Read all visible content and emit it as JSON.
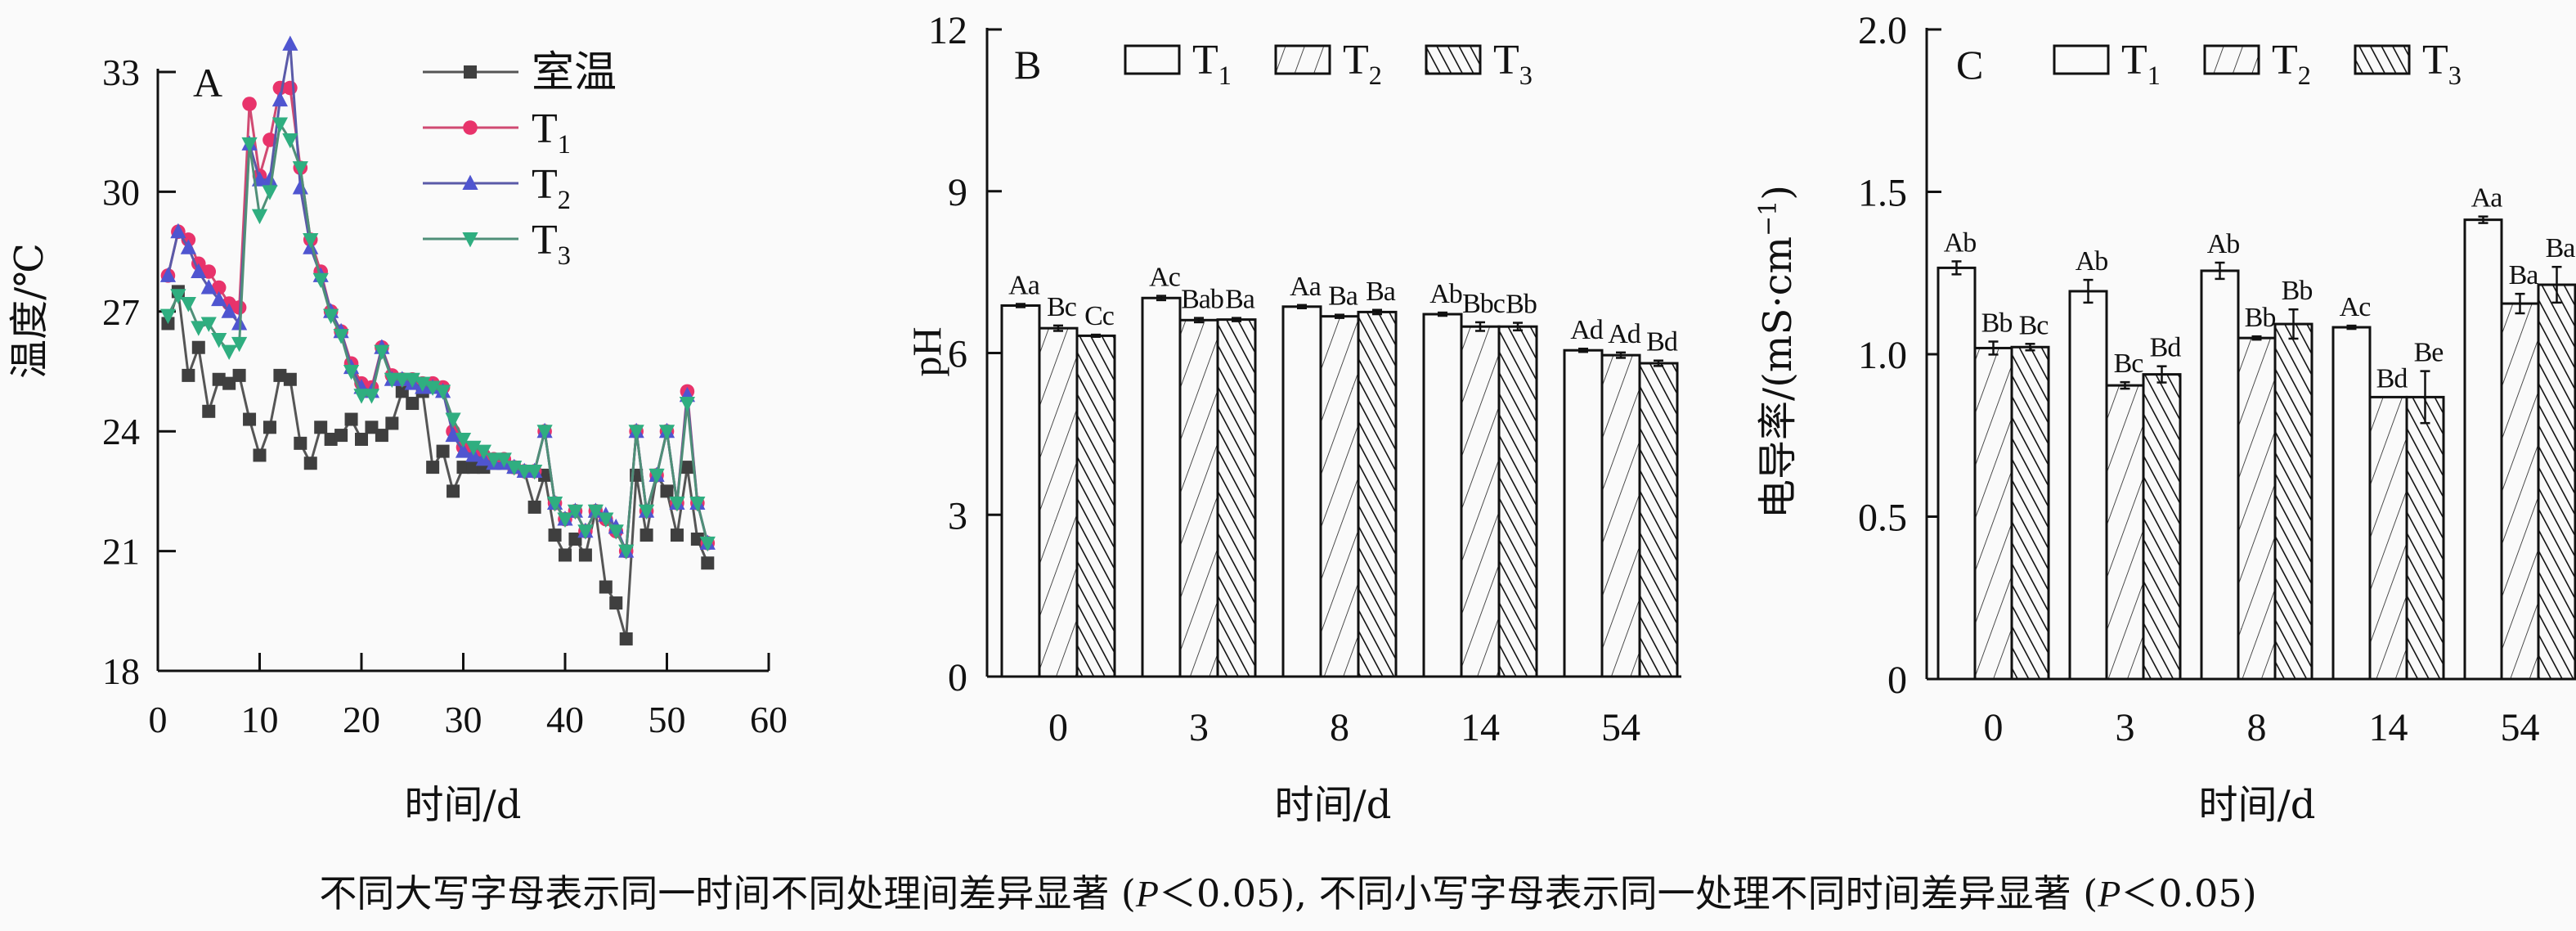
{
  "caption": {
    "parts": [
      "不同大写字母表示同一时间不同处理间差异显著 (",
      "P",
      "＜0.05), 不同小写字母表示同一处理不同时间差异显著 (",
      "P",
      "＜0.05)"
    ]
  },
  "chart_data": [
    {
      "type": "line",
      "panel_label": "A",
      "xlabel": "时间/d",
      "ylabel": "温度/℃",
      "xlim": [
        0,
        60
      ],
      "ylim": [
        18,
        33
      ],
      "xticks": [
        "0",
        "10",
        "20",
        "30",
        "40",
        "50",
        "60"
      ],
      "yticks": [
        "18",
        "21",
        "24",
        "27",
        "30",
        "33"
      ],
      "legend_position": "top-right",
      "grid": false,
      "x": [
        1,
        2,
        3,
        4,
        5,
        6,
        7,
        8,
        9,
        10,
        11,
        12,
        13,
        14,
        15,
        16,
        17,
        18,
        19,
        20,
        21,
        22,
        23,
        24,
        25,
        26,
        27,
        28,
        29,
        30,
        31,
        32,
        33,
        34,
        35,
        36,
        37,
        38,
        39,
        40,
        41,
        42,
        43,
        44,
        45,
        46,
        47,
        48,
        49,
        50,
        51,
        52,
        53,
        54
      ],
      "series": [
        {
          "name": "室温",
          "marker": "square",
          "color": "#3f3f3f",
          "line_color": "#555555",
          "values": [
            26.7,
            27.5,
            25.4,
            26.1,
            24.5,
            25.3,
            25.2,
            25.4,
            24.3,
            23.4,
            24.1,
            25.4,
            25.3,
            23.7,
            23.2,
            24.1,
            23.8,
            23.9,
            24.3,
            23.8,
            24.1,
            23.9,
            24.2,
            25.0,
            24.7,
            25.0,
            23.1,
            23.5,
            22.5,
            23.1,
            23.1,
            23.1,
            23.2,
            23.2,
            23.1,
            23.0,
            22.1,
            22.9,
            21.4,
            20.9,
            21.3,
            20.9,
            22.0,
            20.1,
            19.7,
            18.8,
            22.9,
            21.4,
            22.9,
            22.5,
            21.4,
            23.1,
            21.3,
            20.7
          ]
        },
        {
          "name": "T1",
          "marker": "circle",
          "color": "#e8336b",
          "line_color": "#d04a72",
          "values": [
            27.9,
            29.0,
            28.8,
            28.2,
            28.0,
            27.6,
            27.2,
            27.1,
            32.2,
            30.4,
            31.3,
            32.6,
            32.6,
            30.6,
            28.8,
            28.0,
            27.0,
            26.5,
            25.7,
            25.2,
            25.1,
            26.1,
            25.4,
            25.3,
            25.3,
            25.2,
            25.2,
            25.1,
            24.0,
            23.6,
            23.5,
            23.4,
            23.3,
            23.3,
            23.1,
            23.0,
            23.0,
            24.0,
            22.2,
            21.8,
            22.0,
            21.5,
            22.0,
            21.8,
            21.5,
            21.0,
            24.0,
            22.0,
            22.9,
            24.0,
            22.2,
            25.0,
            22.2,
            21.2
          ]
        },
        {
          "name": "T2",
          "marker": "triangle-up",
          "color": "#4f55d0",
          "line_color": "#5a5aa8",
          "values": [
            27.9,
            29.0,
            28.6,
            28.0,
            27.6,
            27.3,
            27.0,
            26.7,
            31.2,
            30.3,
            30.3,
            32.3,
            33.7,
            30.1,
            28.6,
            27.9,
            27.0,
            26.5,
            25.6,
            25.1,
            25.0,
            26.1,
            25.3,
            25.3,
            25.2,
            25.1,
            25.1,
            25.0,
            23.9,
            23.5,
            23.4,
            23.3,
            23.2,
            23.2,
            23.1,
            23.0,
            23.0,
            24.0,
            22.2,
            21.8,
            22.0,
            21.5,
            22.0,
            21.9,
            21.6,
            21.0,
            24.0,
            22.0,
            22.9,
            24.0,
            22.2,
            24.9,
            22.2,
            21.2
          ]
        },
        {
          "name": "T3",
          "marker": "triangle-down",
          "color": "#2fae80",
          "line_color": "#4f8f78",
          "values": [
            26.9,
            27.4,
            27.2,
            26.6,
            26.7,
            26.3,
            26.0,
            26.2,
            31.2,
            29.4,
            30.0,
            31.7,
            31.3,
            30.6,
            28.8,
            27.8,
            26.9,
            26.4,
            25.5,
            24.9,
            24.9,
            26.0,
            25.3,
            25.3,
            25.3,
            25.2,
            25.1,
            25.0,
            24.3,
            23.8,
            23.6,
            23.5,
            23.3,
            23.3,
            23.1,
            23.0,
            23.0,
            24.0,
            22.2,
            21.8,
            22.0,
            21.5,
            22.0,
            21.8,
            21.5,
            21.0,
            24.0,
            22.0,
            22.9,
            24.0,
            22.2,
            24.7,
            22.2,
            21.2
          ]
        }
      ]
    },
    {
      "type": "bar",
      "panel_label": "B",
      "xlabel": "时间/d",
      "ylabel": "pH",
      "ylim": [
        0,
        12
      ],
      "yticks": [
        "0",
        "3",
        "6",
        "9",
        "12"
      ],
      "categories": [
        "0",
        "3",
        "8",
        "14",
        "54"
      ],
      "legend_position": "top",
      "grid": false,
      "series": [
        {
          "name": "T1",
          "fill": "open",
          "values": [
            6.88,
            7.02,
            6.86,
            6.72,
            6.05
          ],
          "errors": [
            0.03,
            0.04,
            0.03,
            0.03,
            0.03
          ],
          "letters": [
            "Aa",
            "Ac",
            "Aa",
            "Ab",
            "Ad"
          ]
        },
        {
          "name": "T2",
          "fill": "sparse-forward-hatch",
          "values": [
            6.46,
            6.61,
            6.68,
            6.49,
            5.96
          ],
          "errors": [
            0.05,
            0.04,
            0.03,
            0.08,
            0.05
          ],
          "letters": [
            "Bc",
            "Bab",
            "Ba",
            "Bbc",
            "Ad"
          ]
        },
        {
          "name": "T3",
          "fill": "dense-back-hatch",
          "values": [
            6.32,
            6.62,
            6.76,
            6.49,
            5.81
          ],
          "errors": [
            0.02,
            0.03,
            0.04,
            0.07,
            0.05
          ],
          "letters": [
            "Cc",
            "Ba",
            "Ba",
            "Bb",
            "Bd"
          ]
        }
      ]
    },
    {
      "type": "bar",
      "panel_label": "C",
      "xlabel": "时间/d",
      "ylabel": {
        "main": "电导率/(mS·cm",
        "sup": "−1",
        "end": ")"
      },
      "ylim": [
        0,
        2.0
      ],
      "yticks": [
        "0",
        "0.5",
        "1.0",
        "1.5",
        "2.0"
      ],
      "categories": [
        "0",
        "3",
        "8",
        "14",
        "54"
      ],
      "legend_position": "top",
      "grid": false,
      "series": [
        {
          "name": "T1",
          "fill": "open",
          "values": [
            1.266,
            1.194,
            1.257,
            1.083,
            1.414
          ],
          "errors": [
            0.02,
            0.035,
            0.025,
            0.005,
            0.01
          ],
          "letters": [
            "Ab",
            "Ab",
            "Ab",
            "Ac",
            "Aa"
          ]
        },
        {
          "name": "T2",
          "fill": "sparse-forward-hatch",
          "values": [
            1.019,
            0.904,
            1.05,
            0.868,
            1.156
          ],
          "errors": [
            0.02,
            0.01,
            0.005,
            0.0,
            0.03
          ],
          "letters": [
            "Bb",
            "Bc",
            "Bb",
            "Bd",
            "Ba"
          ]
        },
        {
          "name": "T3",
          "fill": "dense-back-hatch",
          "values": [
            1.022,
            0.938,
            1.093,
            0.868,
            1.214
          ],
          "errors": [
            0.01,
            0.025,
            0.045,
            0.08,
            0.055
          ],
          "letters": [
            "Bc",
            "Bd",
            "Bb",
            "Be",
            "Ba"
          ]
        }
      ]
    }
  ]
}
